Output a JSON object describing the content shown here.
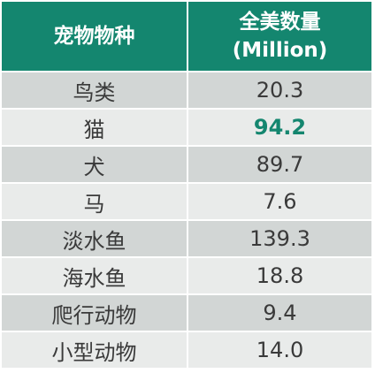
{
  "header": {
    "species": "宠物物种",
    "count_lines": [
      "全美数量",
      "(Million)"
    ]
  },
  "rows": [
    [
      "鸟类",
      "20.3"
    ],
    [
      "猫",
      "94.2"
    ],
    [
      "犬",
      "89.7"
    ],
    [
      "马",
      "7.6"
    ],
    [
      "淡水鱼",
      "139.3"
    ],
    [
      "海水鱼",
      "18.8"
    ],
    [
      "爬行动物",
      "9.4"
    ],
    [
      "小型动物",
      "14.0"
    ]
  ]
}
